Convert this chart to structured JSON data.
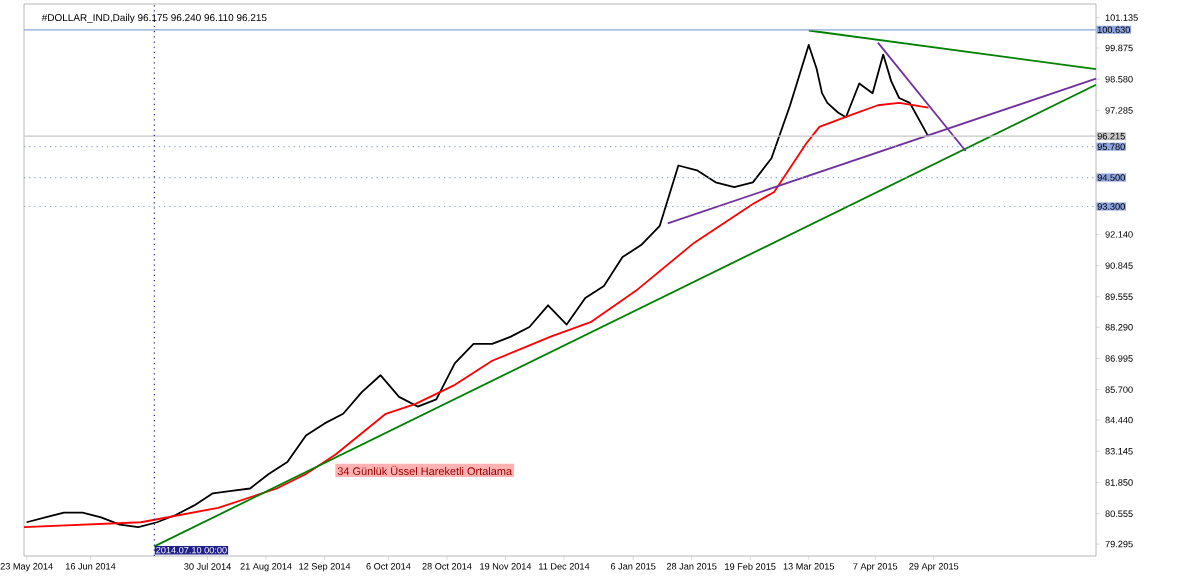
{
  "chart_data": {
    "type": "line",
    "title": "#DOLLAR_IND,Daily  96.175 96.240 96.110 96.215",
    "xlim": [
      "2014-05-22",
      "2015-06-29"
    ],
    "xticks": [
      {
        "value": "2014-05-23",
        "label": "23 May 2014"
      },
      {
        "value": "2014-06-16",
        "label": "16 Jun 2014"
      },
      {
        "value": "2014-07-30",
        "label": "30 Jul 2014"
      },
      {
        "value": "2014-08-21",
        "label": "21 Aug 2014"
      },
      {
        "value": "2014-09-12",
        "label": "12 Sep 2014"
      },
      {
        "value": "2014-10-06",
        "label": "6 Oct 2014"
      },
      {
        "value": "2014-10-28",
        "label": "28 Oct 2014"
      },
      {
        "value": "2014-11-19",
        "label": "19 Nov 2014"
      },
      {
        "value": "2014-12-11",
        "label": "11 Dec 2014"
      },
      {
        "value": "2015-01-06",
        "label": "6 Jan 2015"
      },
      {
        "value": "2015-01-28",
        "label": "28 Jan 2015"
      },
      {
        "value": "2015-02-19",
        "label": "19 Feb 2015"
      },
      {
        "value": "2015-03-13",
        "label": "13 Mar 2015"
      },
      {
        "value": "2015-04-07",
        "label": "7 Apr 2015"
      },
      {
        "value": "2015-04-29",
        "label": "29 Apr 2015"
      }
    ],
    "ylim": [
      78.8,
      101.7
    ],
    "yticks": [
      79.295,
      80.555,
      {
        "value": 81.85,
        "label": "81.850"
      },
      83.145,
      {
        "value": 84.44,
        "label": "84.440"
      },
      {
        "value": 85.7,
        "label": "85.700"
      },
      86.995,
      {
        "value": 88.29,
        "label": "88.290"
      },
      89.555,
      90.845,
      {
        "value": 92.14,
        "label": "92.140"
      },
      97.285,
      {
        "value": 98.58,
        "label": "98.580"
      },
      99.875,
      101.135
    ],
    "series": [
      {
        "color": "#000000",
        "x": [
          "2014-05-23",
          "2014-05-30",
          "2014-06-06",
          "2014-06-13",
          "2014-06-20",
          "2014-06-27",
          "2014-07-04",
          "2014-07-11",
          "2014-07-18",
          "2014-07-25",
          "2014-08-01",
          "2014-08-08",
          "2014-08-15",
          "2014-08-22",
          "2014-08-29",
          "2014-09-05",
          "2014-09-12",
          "2014-09-19",
          "2014-09-26",
          "2014-10-03",
          "2014-10-10",
          "2014-10-17",
          "2014-10-24",
          "2014-10-31",
          "2014-11-07",
          "2014-11-14",
          "2014-11-21",
          "2014-11-28",
          "2014-12-05",
          "2014-12-12",
          "2014-12-19",
          "2014-12-26",
          "2015-01-02",
          "2015-01-09",
          "2015-01-16",
          "2015-01-23",
          "2015-01-30",
          "2015-02-06",
          "2015-02-13",
          "2015-02-20",
          "2015-02-27",
          "2015-03-06",
          "2015-03-13",
          "2015-03-16",
          "2015-03-18",
          "2015-03-20",
          "2015-03-24",
          "2015-03-27",
          "2015-04-01",
          "2015-04-06",
          "2015-04-10",
          "2015-04-13",
          "2015-04-16",
          "2015-04-20",
          "2015-04-22",
          "2015-04-24",
          "2015-04-27"
        ],
        "values": [
          80.2,
          80.4,
          80.6,
          80.6,
          80.4,
          80.1,
          80.0,
          80.2,
          80.5,
          80.9,
          81.4,
          81.5,
          81.6,
          82.2,
          82.7,
          83.8,
          84.3,
          84.7,
          85.6,
          86.3,
          85.4,
          85.0,
          85.3,
          86.8,
          87.6,
          87.6,
          87.9,
          88.3,
          89.2,
          88.4,
          89.5,
          90.0,
          91.2,
          91.7,
          92.5,
          95.0,
          94.8,
          94.3,
          94.1,
          94.3,
          95.3,
          97.5,
          100.0,
          99.0,
          98.0,
          97.6,
          97.2,
          97.0,
          98.4,
          98.0,
          99.6,
          98.5,
          97.8,
          97.6,
          97.2,
          96.8,
          96.2
        ]
      },
      {
        "color": "#ff0000",
        "x": [
          "2014-05-22",
          "2014-07-05",
          "2014-08-03",
          "2014-08-25",
          "2014-09-05",
          "2014-09-16",
          "2014-10-05",
          "2014-10-16",
          "2014-10-31",
          "2014-11-14",
          "2014-12-06",
          "2014-12-21",
          "2015-01-07",
          "2015-01-29",
          "2015-02-20",
          "2015-02-28",
          "2015-03-12",
          "2015-03-17",
          "2015-03-29",
          "2015-04-08",
          "2015-04-16",
          "2015-04-27"
        ],
        "values": [
          80.0,
          80.2,
          80.8,
          81.6,
          82.2,
          83.0,
          84.7,
          85.1,
          85.9,
          86.9,
          87.9,
          88.5,
          89.8,
          91.8,
          93.4,
          93.9,
          95.9,
          96.6,
          97.1,
          97.5,
          97.6,
          97.4
        ]
      },
      {
        "color": "#008000",
        "x": [
          "2014-07-10",
          "2015-06-29"
        ],
        "values": [
          79.2,
          98.35
        ]
      },
      {
        "color": "#008000",
        "x": [
          "2015-03-13",
          "2015-06-29"
        ],
        "values": [
          100.6,
          99.0
        ]
      },
      {
        "color": "#7030a0",
        "x": [
          "2015-01-19",
          "2015-06-29"
        ],
        "values": [
          92.6,
          98.6
        ]
      },
      {
        "color": "#7030a0",
        "x": [
          "2015-04-08",
          "2015-05-11"
        ],
        "values": [
          100.1,
          95.6
        ]
      }
    ],
    "ref_lines": [
      {
        "axis": "y",
        "value": 100.63,
        "label": "100.630",
        "color": "#8ea4e0",
        "line_style": "solid"
      },
      {
        "axis": "y",
        "value": 96.215,
        "label": "96.215",
        "color": "#c8c8c8",
        "line_style": "solid"
      },
      {
        "axis": "y",
        "value": 95.78,
        "label": "95.780",
        "color": "#8ea4e0",
        "line_style": "dotted"
      },
      {
        "axis": "y",
        "value": 94.5,
        "label": "94.500",
        "color": "#8ea4e0",
        "line_style": "dotted"
      },
      {
        "axis": "y",
        "value": 93.3,
        "label": "93.300",
        "color": "#8ea4e0",
        "line_style": "dotted"
      },
      {
        "axis": "x",
        "value": "2014-07-10",
        "label": "2014.07.10 00:00",
        "color": "#20208c",
        "line_style": "dotted"
      }
    ],
    "annotations": [
      "34 Günlük Üssel Hareketli Ortalama"
    ],
    "marker": "none",
    "line_style": "solid"
  }
}
